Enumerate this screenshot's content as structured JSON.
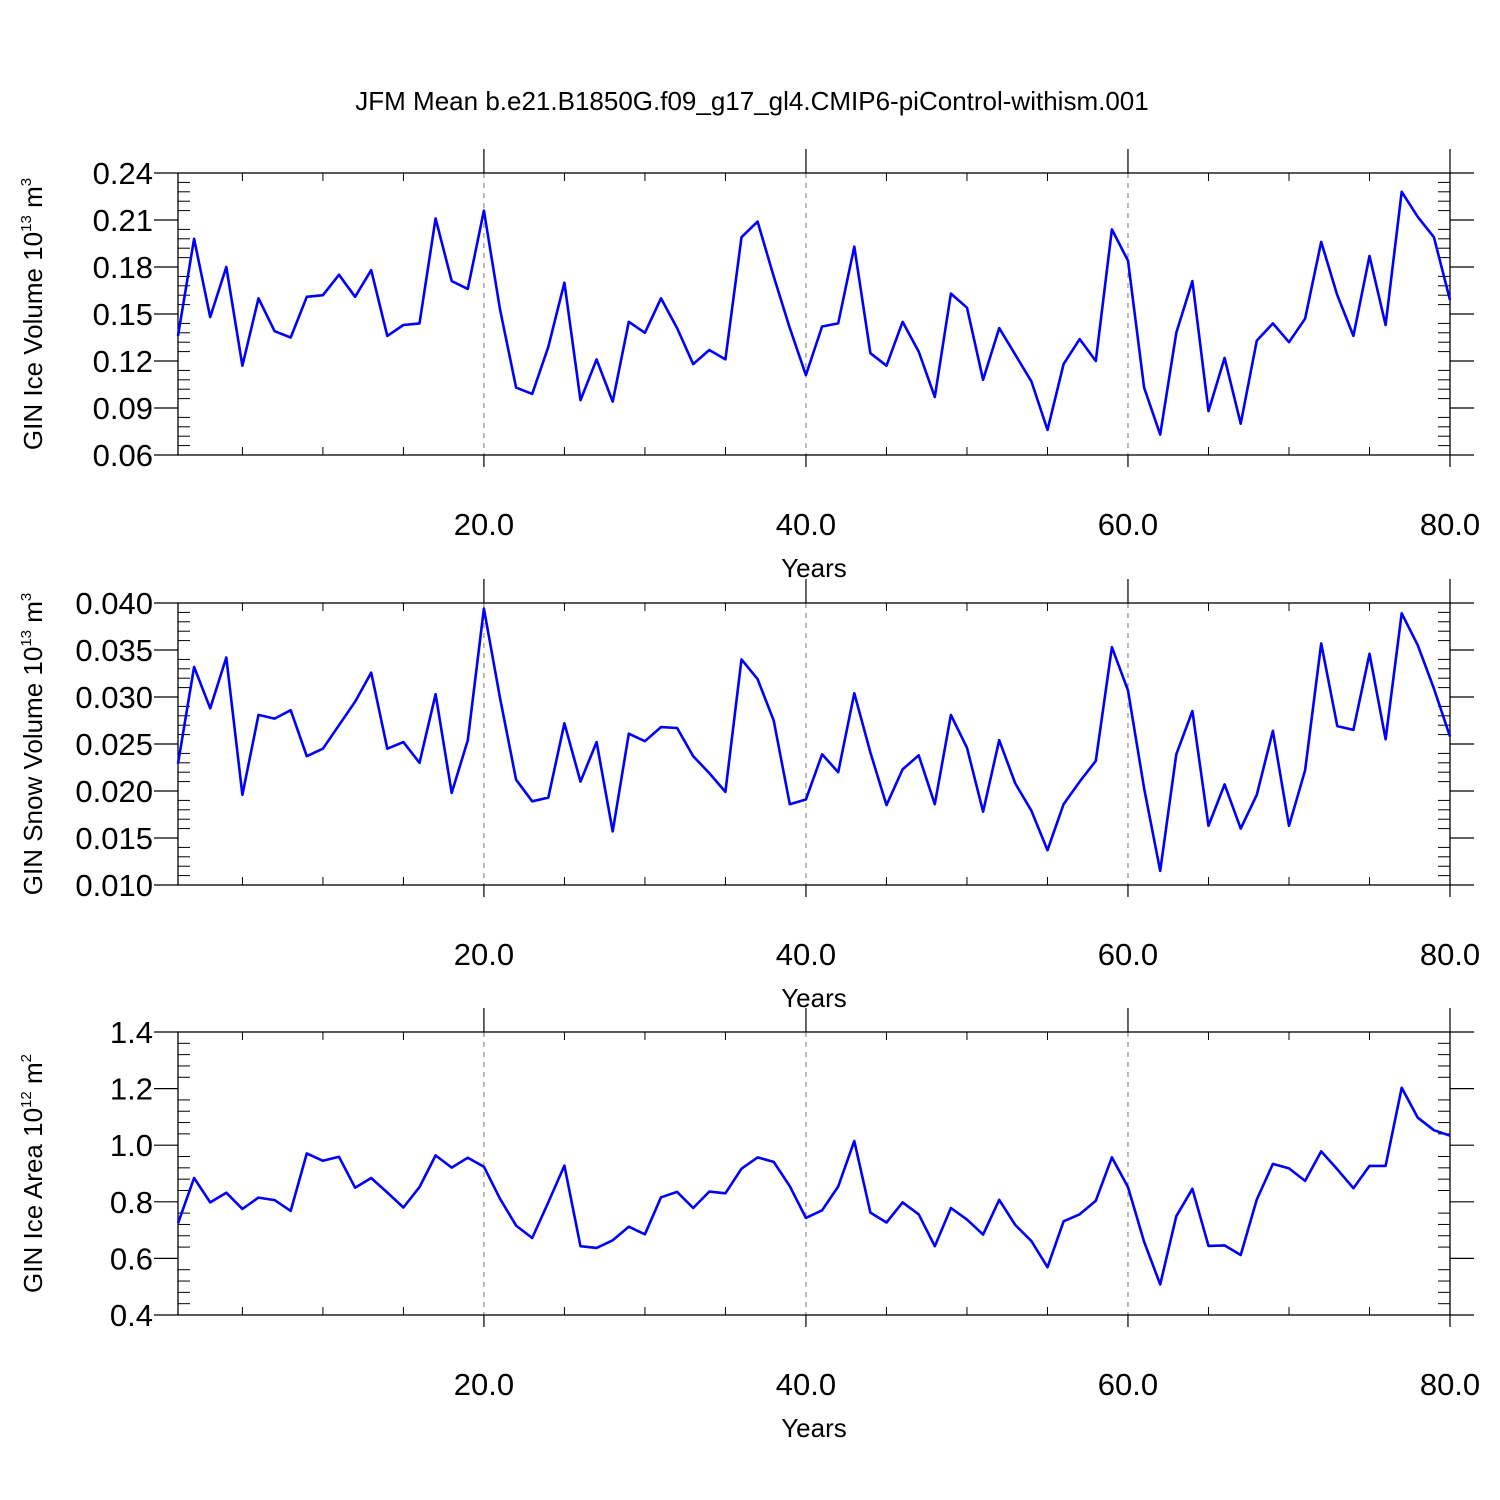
{
  "title": "JFM Mean b.e21.B1850G.f09_g17_gl4.CMIP6-piControl-withism.001",
  "line_color": "#0000ff",
  "chart_data": [
    {
      "type": "line",
      "ylabel": {
        "text": "GIN Ice Volume 10",
        "sup": "13",
        "unit": " m",
        "unit_sup": "3"
      },
      "xlabel": "Years",
      "xlim": [
        1,
        80
      ],
      "ylim": [
        0.06,
        0.24
      ],
      "xticks": [
        20,
        40,
        60,
        80
      ],
      "xticklabels": [
        "20.0",
        "40.0",
        "60.0",
        "80.0"
      ],
      "yticks": [
        0.06,
        0.09,
        0.12,
        0.15,
        0.18,
        0.21,
        0.24
      ],
      "yticklabels": [
        "0.06",
        "0.09",
        "0.12",
        "0.15",
        "0.18",
        "0.21",
        "0.24"
      ],
      "grid": "vertical-dashed",
      "series": [
        {
          "x": [
            1,
            2,
            3,
            4,
            5,
            6,
            7,
            8,
            9,
            10,
            11,
            12,
            13,
            14,
            15,
            16,
            17,
            18,
            19,
            20,
            21,
            22,
            23,
            24,
            25,
            26,
            27,
            28,
            29,
            30,
            31,
            32,
            33,
            34,
            35,
            36,
            37,
            38,
            39,
            40,
            41,
            42,
            43,
            44,
            45,
            46,
            47,
            48,
            49,
            50,
            51,
            52,
            53,
            54,
            55,
            56,
            57,
            58,
            59,
            60,
            61,
            62,
            63,
            64,
            65,
            66,
            67,
            68,
            69,
            70,
            71,
            72,
            73,
            74,
            75,
            76,
            77,
            78,
            79,
            80
          ],
          "values": [
            0.136,
            0.198,
            0.148,
            0.18,
            0.117,
            0.16,
            0.139,
            0.135,
            0.161,
            0.162,
            0.175,
            0.161,
            0.178,
            0.136,
            0.143,
            0.144,
            0.211,
            0.171,
            0.166,
            0.216,
            0.153,
            0.103,
            0.099,
            0.129,
            0.17,
            0.095,
            0.121,
            0.094,
            0.145,
            0.138,
            0.16,
            0.141,
            0.118,
            0.127,
            0.121,
            0.199,
            0.209,
            0.174,
            0.141,
            0.111,
            0.142,
            0.144,
            0.193,
            0.125,
            0.117,
            0.145,
            0.126,
            0.097,
            0.163,
            0.154,
            0.108,
            0.141,
            0.124,
            0.107,
            0.076,
            0.118,
            0.134,
            0.12,
            0.204,
            0.184,
            0.103,
            0.073,
            0.138,
            0.171,
            0.088,
            0.122,
            0.08,
            0.133,
            0.144,
            0.132,
            0.147,
            0.196,
            0.162,
            0.136,
            0.187,
            0.143,
            0.228,
            0.212,
            0.199,
            0.159
          ]
        }
      ]
    },
    {
      "type": "line",
      "ylabel": {
        "text": "GIN Snow Volume 10",
        "sup": "13",
        "unit": " m",
        "unit_sup": "3"
      },
      "xlabel": "Years",
      "xlim": [
        1,
        80
      ],
      "ylim": [
        0.01,
        0.04
      ],
      "xticks": [
        20,
        40,
        60,
        80
      ],
      "xticklabels": [
        "20.0",
        "40.0",
        "60.0",
        "80.0"
      ],
      "yticks": [
        0.01,
        0.015,
        0.02,
        0.025,
        0.03,
        0.035,
        0.04
      ],
      "yticklabels": [
        "0.010",
        "0.015",
        "0.020",
        "0.025",
        "0.030",
        "0.035",
        "0.040"
      ],
      "grid": "vertical-dashed",
      "series": [
        {
          "x": [
            1,
            2,
            3,
            4,
            5,
            6,
            7,
            8,
            9,
            10,
            11,
            12,
            13,
            14,
            15,
            16,
            17,
            18,
            19,
            20,
            21,
            22,
            23,
            24,
            25,
            26,
            27,
            28,
            29,
            30,
            31,
            32,
            33,
            34,
            35,
            36,
            37,
            38,
            39,
            40,
            41,
            42,
            43,
            44,
            45,
            46,
            47,
            48,
            49,
            50,
            51,
            52,
            53,
            54,
            55,
            56,
            57,
            58,
            59,
            60,
            61,
            62,
            63,
            64,
            65,
            66,
            67,
            68,
            69,
            70,
            71,
            72,
            73,
            74,
            75,
            76,
            77,
            78,
            79,
            80
          ],
          "values": [
            0.0229,
            0.0332,
            0.0288,
            0.0342,
            0.0196,
            0.0281,
            0.0277,
            0.0286,
            0.0237,
            0.0245,
            0.027,
            0.0295,
            0.0326,
            0.0245,
            0.0252,
            0.023,
            0.0303,
            0.0198,
            0.0254,
            0.0394,
            0.0299,
            0.0212,
            0.0189,
            0.0193,
            0.0272,
            0.021,
            0.0252,
            0.0157,
            0.0261,
            0.0253,
            0.0268,
            0.0267,
            0.0237,
            0.0219,
            0.0199,
            0.034,
            0.0319,
            0.0275,
            0.0186,
            0.0191,
            0.0239,
            0.022,
            0.0304,
            0.0241,
            0.0185,
            0.0223,
            0.0238,
            0.0186,
            0.0281,
            0.0246,
            0.0178,
            0.0254,
            0.0208,
            0.0179,
            0.0137,
            0.0186,
            0.021,
            0.0232,
            0.0353,
            0.0307,
            0.0203,
            0.0115,
            0.0239,
            0.0285,
            0.0163,
            0.0207,
            0.016,
            0.0196,
            0.0264,
            0.0163,
            0.0222,
            0.0357,
            0.0269,
            0.0265,
            0.0346,
            0.0255,
            0.0389,
            0.0355,
            0.0309,
            0.0258
          ]
        }
      ]
    },
    {
      "type": "line",
      "ylabel": {
        "text": "GIN Ice Area 10",
        "sup": "12",
        "unit": " m",
        "unit_sup": "2"
      },
      "xlabel": "Years",
      "xlim": [
        1,
        80
      ],
      "ylim": [
        0.4,
        1.4
      ],
      "xticks": [
        20,
        40,
        60,
        80
      ],
      "xticklabels": [
        "20.0",
        "40.0",
        "60.0",
        "80.0"
      ],
      "yticks": [
        0.4,
        0.6,
        0.8,
        1.0,
        1.2,
        1.4
      ],
      "yticklabels": [
        "0.4",
        "0.6",
        "0.8",
        "1.0",
        "1.2",
        "1.4"
      ],
      "grid": "vertical-dashed",
      "series": [
        {
          "x": [
            1,
            2,
            3,
            4,
            5,
            6,
            7,
            8,
            9,
            10,
            11,
            12,
            13,
            14,
            15,
            16,
            17,
            18,
            19,
            20,
            21,
            22,
            23,
            24,
            25,
            26,
            27,
            28,
            29,
            30,
            31,
            32,
            33,
            34,
            35,
            36,
            37,
            38,
            39,
            40,
            41,
            42,
            43,
            44,
            45,
            46,
            47,
            48,
            49,
            50,
            51,
            52,
            53,
            54,
            55,
            56,
            57,
            58,
            59,
            60,
            61,
            62,
            63,
            64,
            65,
            66,
            67,
            68,
            69,
            70,
            71,
            72,
            73,
            74,
            75,
            76,
            77,
            78,
            79,
            80
          ],
          "values": [
            0.724,
            0.884,
            0.798,
            0.832,
            0.775,
            0.815,
            0.806,
            0.768,
            0.971,
            0.945,
            0.959,
            0.85,
            0.884,
            0.833,
            0.78,
            0.852,
            0.964,
            0.921,
            0.956,
            0.924,
            0.811,
            0.716,
            0.672,
            0.798,
            0.928,
            0.643,
            0.637,
            0.664,
            0.712,
            0.685,
            0.816,
            0.835,
            0.778,
            0.836,
            0.83,
            0.917,
            0.957,
            0.941,
            0.855,
            0.743,
            0.77,
            0.854,
            1.015,
            0.762,
            0.727,
            0.798,
            0.756,
            0.643,
            0.778,
            0.737,
            0.684,
            0.807,
            0.718,
            0.661,
            0.569,
            0.731,
            0.756,
            0.804,
            0.957,
            0.852,
            0.659,
            0.508,
            0.749,
            0.846,
            0.644,
            0.646,
            0.612,
            0.808,
            0.934,
            0.918,
            0.874,
            0.978,
            0.915,
            0.848,
            0.927,
            0.927,
            1.203,
            1.097,
            1.053,
            1.034
          ]
        }
      ]
    }
  ]
}
